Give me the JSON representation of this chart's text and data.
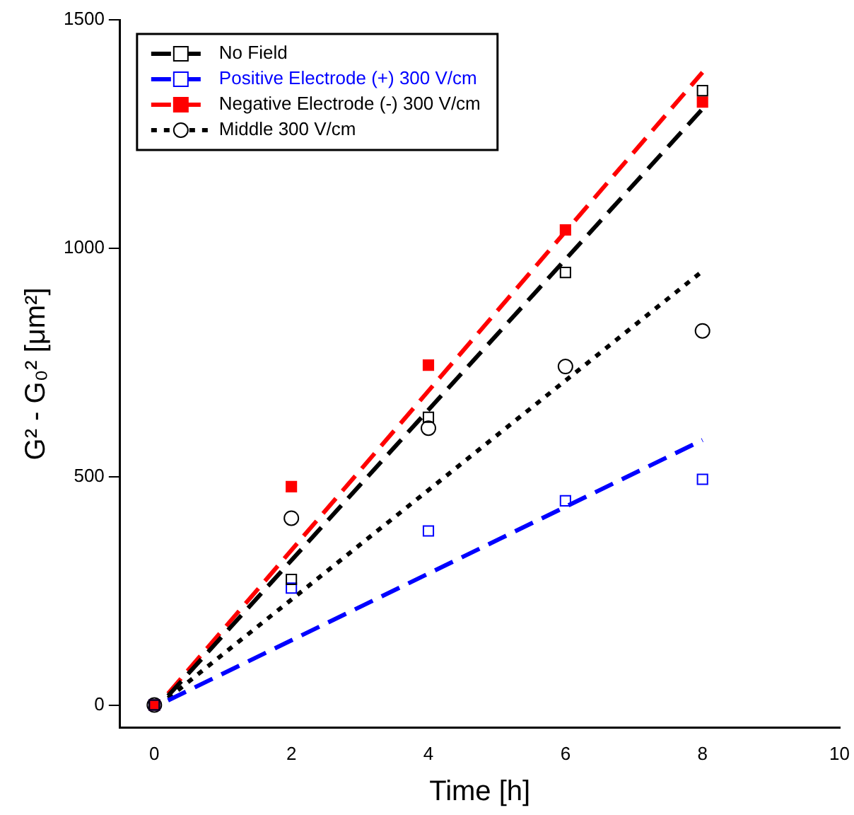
{
  "chart_data": {
    "type": "scatter",
    "xlabel": "Time [h]",
    "ylabel": "G² - G₀² [μm²]",
    "xlim": [
      -0.5,
      10
    ],
    "ylim": [
      -50,
      1500
    ],
    "xticks": [
      0,
      2,
      4,
      6,
      8,
      10
    ],
    "yticks": [
      0,
      500,
      1000,
      1500
    ],
    "grid": false,
    "legend": "top left",
    "series": [
      {
        "name": "No Field",
        "color": "#000000",
        "marker": "square",
        "line_style": "dashed",
        "x": [
          0,
          2,
          4,
          6,
          8
        ],
        "values": [
          0,
          275,
          630,
          947,
          1345
        ]
      },
      {
        "name": "Positive Electrode (+) 300 V/cm",
        "color": "#0000ff",
        "marker": "square",
        "line_style": "dashed",
        "x": [
          0,
          2,
          4,
          6,
          8
        ],
        "values": [
          0,
          256,
          381,
          447,
          494
        ]
      },
      {
        "name": "Negative Electrode (-) 300 V/cm",
        "color": "#ff0000",
        "marker": "square",
        "line_style": "dashed",
        "x": [
          0,
          2,
          4,
          6,
          8
        ],
        "values": [
          0,
          478,
          744,
          1040,
          1320
        ]
      },
      {
        "name": "Middle 300 V/cm",
        "color": "#000000",
        "marker": "circle",
        "line_style": "dotted",
        "x": [
          0,
          2,
          4,
          6,
          8
        ],
        "values": [
          0,
          409,
          606,
          741,
          819
        ]
      },
      {
        "type": "line",
        "color": "#000000",
        "marker": "none",
        "line_style": "dashed",
        "x": [
          0.2,
          8
        ],
        "values": [
          20,
          1305
        ]
      },
      {
        "type": "line",
        "color": "#0000ff",
        "marker": "none",
        "line_style": "dashed",
        "x": [
          0.2,
          8
        ],
        "values": [
          10,
          580
        ]
      },
      {
        "type": "line",
        "color": "#ff0000",
        "marker": "none",
        "line_style": "dashed",
        "x": [
          0.2,
          8
        ],
        "values": [
          25,
          1385
        ]
      },
      {
        "type": "line",
        "color": "#000000",
        "marker": "none",
        "line_style": "dotted",
        "x": [
          0.2,
          8
        ],
        "values": [
          15,
          950
        ]
      }
    ]
  }
}
